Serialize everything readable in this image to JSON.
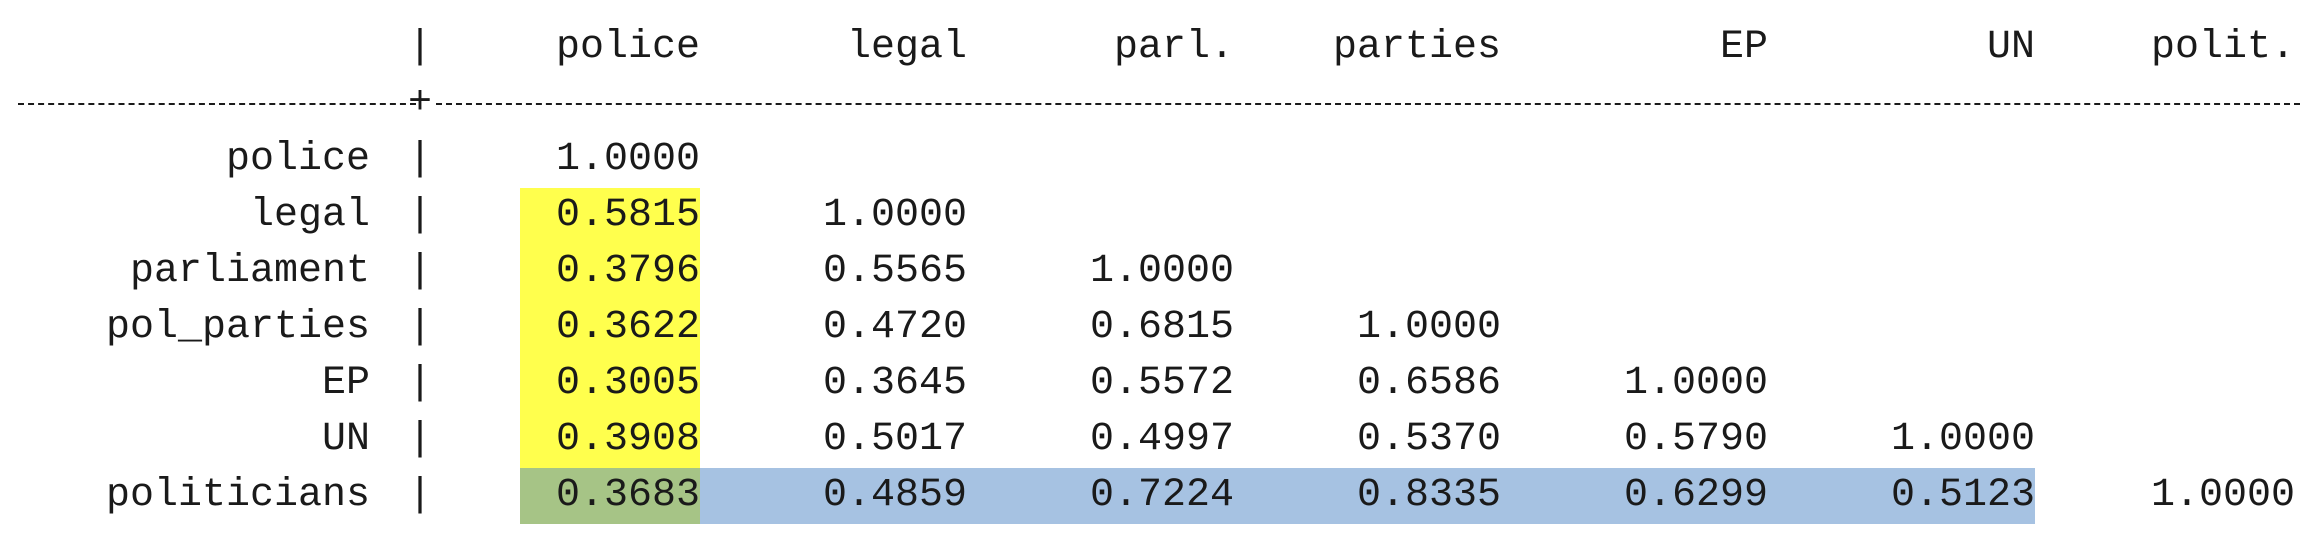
{
  "table": {
    "separator_char": "|",
    "cross_char": "+",
    "col_headers": [
      "police",
      "legal",
      "parl.",
      "parties",
      "EP",
      "UN",
      "polit."
    ],
    "rows": [
      {
        "label": "police",
        "values": [
          "1.0000"
        ]
      },
      {
        "label": "legal",
        "values": [
          "0.5815",
          "1.0000"
        ]
      },
      {
        "label": "parliament",
        "values": [
          "0.3796",
          "0.5565",
          "1.0000"
        ]
      },
      {
        "label": "pol_parties",
        "values": [
          "0.3622",
          "0.4720",
          "0.6815",
          "1.0000"
        ]
      },
      {
        "label": "EP",
        "values": [
          "0.3005",
          "0.3645",
          "0.5572",
          "0.6586",
          "1.0000"
        ]
      },
      {
        "label": "UN",
        "values": [
          "0.3908",
          "0.5017",
          "0.4997",
          "0.5370",
          "0.5790",
          "1.0000"
        ]
      },
      {
        "label": "politicians",
        "values": [
          "0.3683",
          "0.4859",
          "0.7224",
          "0.8335",
          "0.6299",
          "0.5123",
          "1.0000"
        ]
      }
    ]
  },
  "highlights": {
    "yellow": "#ffff4d",
    "green": "#a6c486",
    "blue": "#a6c2e2"
  }
}
